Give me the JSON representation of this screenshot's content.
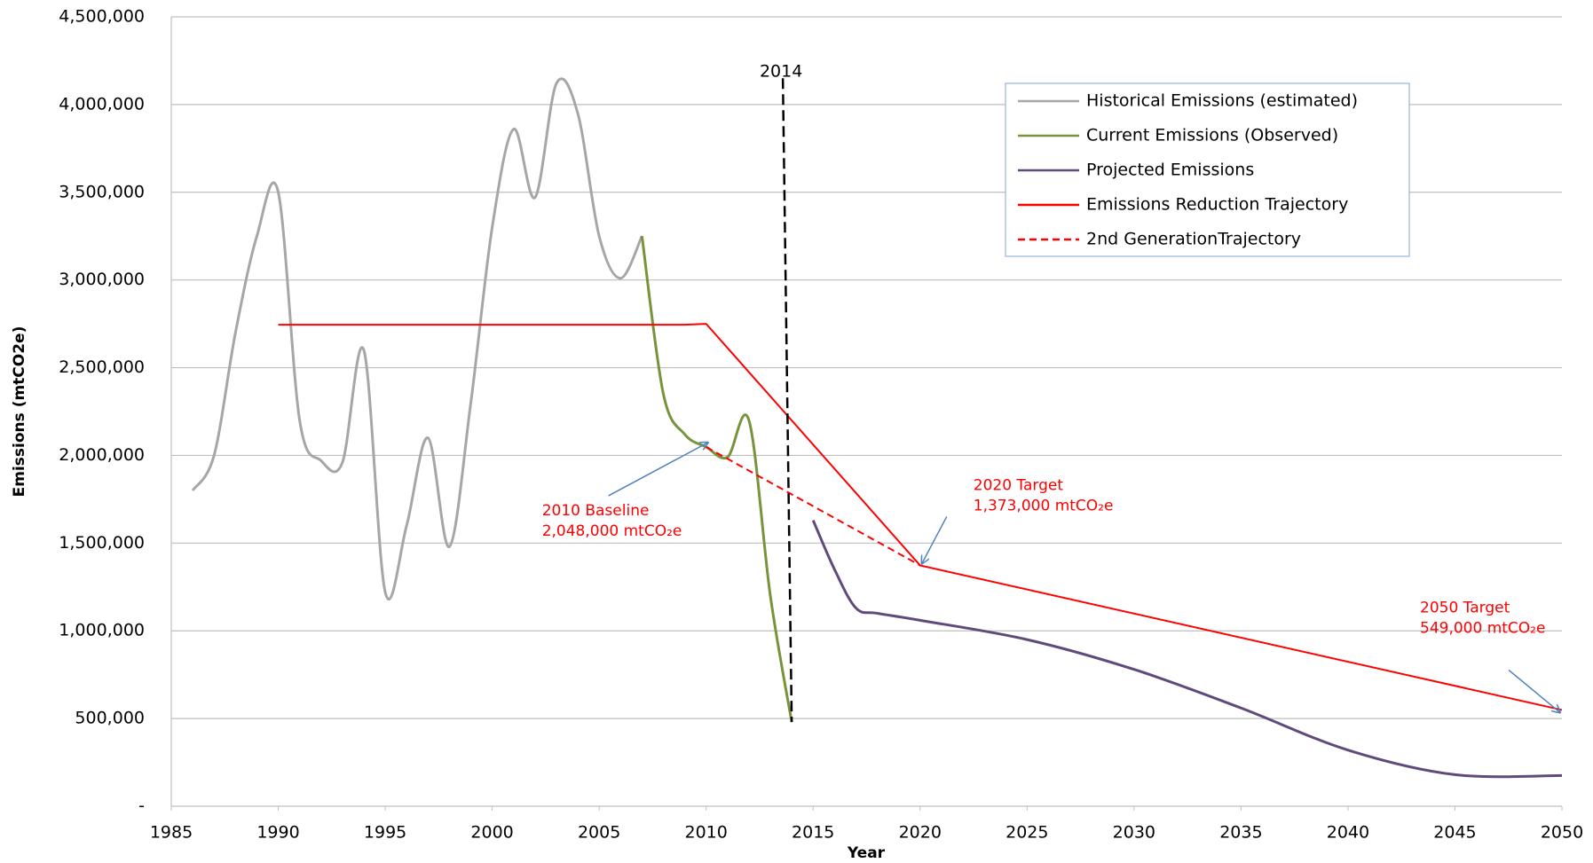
{
  "chart_data": {
    "type": "line",
    "xlabel": "Year",
    "ylabel": "Emissions (mtCO2e)",
    "xlim": [
      1985,
      2050
    ],
    "xticks": [
      1985,
      1990,
      1995,
      2000,
      2005,
      2010,
      2015,
      2020,
      2025,
      2030,
      2035,
      2040,
      2045,
      2050
    ],
    "ylim": [
      0,
      4500000
    ],
    "yticks": [
      {
        "value": 0,
        "label": "-"
      },
      {
        "value": 500000,
        "label": "500,000"
      },
      {
        "value": 1000000,
        "label": "1,000,000"
      },
      {
        "value": 1500000,
        "label": "1,500,000"
      },
      {
        "value": 2000000,
        "label": "2,000,000"
      },
      {
        "value": 2500000,
        "label": "2,500,000"
      },
      {
        "value": 3000000,
        "label": "3,000,000"
      },
      {
        "value": 3500000,
        "label": "3,500,000"
      },
      {
        "value": 4000000,
        "label": "4,000,000"
      },
      {
        "value": 4500000,
        "label": "4,500,000"
      }
    ],
    "grid": true,
    "legend": "upper right",
    "series": [
      {
        "name": "Historical Emissions (estimated)",
        "color": "#a6a6a6",
        "dashed": false,
        "x": [
          1986,
          1987,
          1988,
          1989,
          1990,
          1991,
          1992,
          1993,
          1994,
          1995,
          1996,
          1997,
          1998,
          1999,
          2000,
          2001,
          2002,
          2003,
          2004,
          2005,
          2006,
          2007
        ],
        "values": [
          1800000,
          2000000,
          2700000,
          3250000,
          3500000,
          2200000,
          1970000,
          1960000,
          2600000,
          1220000,
          1600000,
          2100000,
          1480000,
          2300000,
          3300000,
          3860000,
          3470000,
          4120000,
          3950000,
          3250000,
          3010000,
          3250000
        ]
      },
      {
        "name": "Current Emissions (Observed)",
        "color": "#77933c",
        "dashed": false,
        "x": [
          2007,
          2008,
          2009,
          2010,
          2011,
          2012,
          2013,
          2014
        ],
        "values": [
          3250000,
          2350000,
          2120000,
          2048000,
          1990000,
          2200000,
          1200000,
          480000
        ]
      },
      {
        "name": "Projected Emissions",
        "color": "#604a7b",
        "dashed": false,
        "x": [
          2015,
          2016,
          2017,
          2018,
          2020,
          2025,
          2030,
          2035,
          2040,
          2045,
          2050
        ],
        "values": [
          1630000,
          1350000,
          1130000,
          1100000,
          1060000,
          950000,
          780000,
          560000,
          320000,
          180000,
          175000
        ]
      },
      {
        "name": "Emissions Reduction Trajectory",
        "color": "#ff0000",
        "dashed": false,
        "x": [
          1990,
          2009,
          2010,
          2020,
          2050
        ],
        "values": [
          2745000,
          2745000,
          2750000,
          1373000,
          549000
        ]
      },
      {
        "name": "2nd GenerationTrajectory",
        "color": "#ff0000",
        "dashed": true,
        "x": [
          2010,
          2020
        ],
        "values": [
          2048000,
          1373000
        ]
      }
    ],
    "vline": {
      "x": 2014,
      "label": "2014",
      "ylim": [
        480000,
        4150000
      ]
    },
    "annotations": [
      {
        "lines": [
          "2010 Baseline",
          "2,048,000 mtCO₂e"
        ],
        "x": 2010,
        "y": 2048000
      },
      {
        "lines": [
          "2020 Target",
          "1,373,000 mtCO₂e"
        ],
        "x": 2020,
        "y": 1373000
      },
      {
        "lines": [
          "2050 Target",
          "549,000 mtCO₂e"
        ],
        "x": 2050,
        "y": 549000
      }
    ]
  }
}
